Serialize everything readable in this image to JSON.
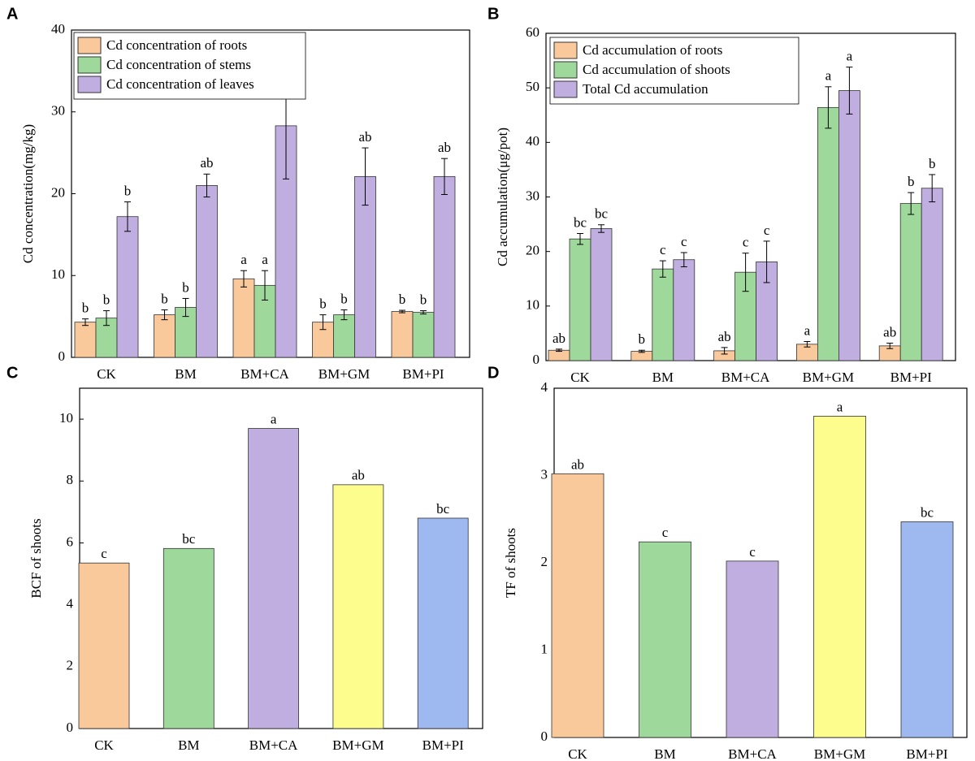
{
  "chart_data": [
    {
      "type": "bar",
      "panel": "A",
      "ylabel": "Cd concentration(mg/kg)",
      "categories": [
        "CK",
        "BM",
        "BM+CA",
        "BM+GM",
        "BM+PI"
      ],
      "ylim": [
        0,
        40
      ],
      "yticks": [
        0,
        10,
        20,
        30,
        40
      ],
      "legend": "upper left",
      "series": [
        {
          "name": "Cd concentration of roots",
          "color": "#f9c89b",
          "values": [
            4.3,
            5.2,
            9.6,
            4.3,
            5.6
          ],
          "errors": [
            0.4,
            0.6,
            1.0,
            0.9,
            0.15
          ],
          "letters": [
            "b",
            "b",
            "a",
            "b",
            "b"
          ]
        },
        {
          "name": "Cd concentration of stems",
          "color": "#9ed89a",
          "values": [
            4.8,
            6.1,
            8.8,
            5.2,
            5.5
          ],
          "errors": [
            0.9,
            1.1,
            1.8,
            0.6,
            0.2
          ],
          "letters": [
            "b",
            "b",
            "a",
            "b",
            "b"
          ]
        },
        {
          "name": "Cd concentration of leaves",
          "color": "#c0aee0",
          "values": [
            17.2,
            21.0,
            28.3,
            22.1,
            22.1
          ],
          "errors": [
            1.8,
            1.4,
            6.5,
            3.5,
            2.2
          ],
          "letters": [
            "b",
            "ab",
            null,
            "ab",
            "ab"
          ]
        }
      ]
    },
    {
      "type": "bar",
      "panel": "B",
      "ylabel": "Cd accumulation(μg/pot)",
      "categories": [
        "CK",
        "BM",
        "BM+CA",
        "BM+GM",
        "BM+PI"
      ],
      "ylim": [
        0,
        60
      ],
      "yticks": [
        0,
        10,
        20,
        30,
        40,
        50,
        60
      ],
      "legend": "upper left",
      "series": [
        {
          "name": "Cd accumulation of roots",
          "color": "#f9c89b",
          "values": [
            1.9,
            1.7,
            1.8,
            3.0,
            2.7
          ],
          "errors": [
            0.2,
            0.2,
            0.6,
            0.5,
            0.5
          ],
          "letters": [
            "ab",
            "b",
            "ab",
            "a",
            "ab"
          ]
        },
        {
          "name": "Cd accumulation of shoots",
          "color": "#9ed89a",
          "values": [
            22.3,
            16.8,
            16.2,
            46.4,
            28.8
          ],
          "errors": [
            1.0,
            1.5,
            3.5,
            3.8,
            2.0
          ],
          "letters": [
            "bc",
            "c",
            "c",
            "a",
            "b"
          ]
        },
        {
          "name": "Total Cd accumulation",
          "color": "#c0aee0",
          "values": [
            24.2,
            18.5,
            18.1,
            49.5,
            31.6
          ],
          "errors": [
            0.7,
            1.3,
            3.8,
            4.3,
            2.5
          ],
          "letters": [
            "bc",
            "c",
            "c",
            "a",
            "b"
          ]
        }
      ]
    },
    {
      "type": "bar",
      "panel": "C",
      "ylabel": "BCF of shoots",
      "categories": [
        "CK",
        "BM",
        "BM+CA",
        "BM+GM",
        "BM+PI"
      ],
      "ylim": [
        0,
        11
      ],
      "yticks": [
        0,
        2,
        4,
        6,
        8,
        10
      ],
      "values": [
        5.35,
        5.82,
        9.7,
        7.88,
        6.8
      ],
      "colors": [
        "#f9c89b",
        "#9ed89a",
        "#c0aee0",
        "#fdfd8e",
        "#9db9ef"
      ],
      "letters": [
        "c",
        "bc",
        "a",
        "ab",
        "bc"
      ]
    },
    {
      "type": "bar",
      "panel": "D",
      "ylabel": "TF of shoots",
      "categories": [
        "CK",
        "BM",
        "BM+CA",
        "BM+GM",
        "BM+PI"
      ],
      "ylim": [
        0,
        4
      ],
      "yticks": [
        0,
        1,
        2,
        3,
        4
      ],
      "values": [
        3.02,
        2.24,
        2.02,
        3.68,
        2.47
      ],
      "colors": [
        "#f9c89b",
        "#9ed89a",
        "#c0aee0",
        "#fdfd8e",
        "#9db9ef"
      ],
      "letters": [
        "ab",
        "c",
        "c",
        "a",
        "bc"
      ]
    }
  ]
}
